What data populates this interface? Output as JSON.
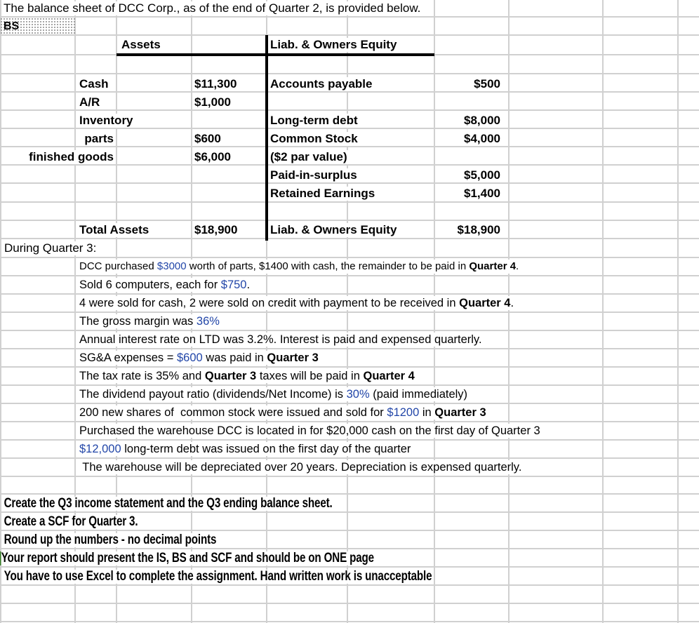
{
  "intro": "The balance sheet of DCC Corp., as of the end of Quarter 2, is provided below.",
  "sheet_tag": "BS",
  "balance_sheet": {
    "assets_header": "Assets",
    "liab_header": "Liab. & Owners Equity",
    "assets": [
      {
        "label": "Cash",
        "value": "$11,300"
      },
      {
        "label": "A/R",
        "value": "$1,000"
      },
      {
        "label": "Inventory",
        "value": ""
      },
      {
        "label": "parts",
        "value": "$600"
      },
      {
        "label": "finished goods",
        "value": "$6,000"
      }
    ],
    "liabilities": [
      {
        "label": "Accounts payable",
        "value": "$500"
      },
      {
        "label": "Long-term debt",
        "value": "$8,000"
      },
      {
        "label": "Common Stock",
        "value": "$4,000"
      },
      {
        "label": "($2 par value)",
        "value": ""
      },
      {
        "label": "Paid-in-surplus",
        "value": "$5,000"
      },
      {
        "label": "Retained Earnings",
        "value": "$1,400"
      }
    ],
    "total_assets_label": "Total Assets",
    "total_assets": "$18,900",
    "total_liab_label": "Liab. & Owners Equity",
    "total_liab": "$18,900"
  },
  "quarter3": {
    "heading": "During Quarter 3:",
    "lines": [
      [
        {
          "t": "DCC purchased "
        },
        {
          "t": "$3000",
          "s": "blue"
        },
        {
          "t": " worth of parts, $1400 with cash, the remainder to be paid in "
        },
        {
          "t": "Quarter 4",
          "s": "b"
        },
        {
          "t": "."
        }
      ],
      [
        {
          "t": "Sold 6 computers, each for "
        },
        {
          "t": "$750",
          "s": "blue"
        },
        {
          "t": "."
        }
      ],
      [
        {
          "t": "4 were sold for cash, 2 were sold on credit with payment to be received in "
        },
        {
          "t": "Quarter 4",
          "s": "b"
        },
        {
          "t": "."
        }
      ],
      [
        {
          "t": "The gross margin was "
        },
        {
          "t": "36%",
          "s": "blue"
        }
      ],
      [
        {
          "t": "Annual interest rate on LTD was 3.2%. Interest is paid and expensed quarterly."
        }
      ],
      [
        {
          "t": "SG&A expenses = "
        },
        {
          "t": "$600",
          "s": "blue"
        },
        {
          "t": " was paid in "
        },
        {
          "t": "Quarter 3",
          "s": "b"
        }
      ],
      [
        {
          "t": "The tax rate is 35% and "
        },
        {
          "t": "Quarter 3",
          "s": "b"
        },
        {
          "t": " taxes will be paid in "
        },
        {
          "t": "Quarter 4",
          "s": "b"
        }
      ],
      [
        {
          "t": "The dividend payout ratio (dividends/Net Income) is "
        },
        {
          "t": "30%",
          "s": "blue"
        },
        {
          "t": " (paid immediately)"
        }
      ],
      [
        {
          "t": "200 new shares of  common stock were issued and sold for "
        },
        {
          "t": "$1200",
          "s": "blue"
        },
        {
          "t": " in "
        },
        {
          "t": "Quarter 3",
          "s": "b"
        }
      ],
      [
        {
          "t": "Purchased the warehouse DCC is located in for $20,000 cash on the first day of Quarter 3"
        }
      ],
      [
        {
          "t": "$12,000",
          "s": "blue"
        },
        {
          "t": " long-term debt was issued on the first day of the quarter"
        }
      ],
      [
        {
          "t": " The warehouse will be depreciated over 20 years. Depreciation is expensed quarterly."
        }
      ]
    ]
  },
  "instructions": [
    "Create the Q3 income statement and the Q3 ending balance sheet.",
    "Create a SCF for Quarter 3.",
    "Round up the numbers - no decimal points",
    "Your report should present the IS, BS and SCF and should be on ONE page",
    "You have to use Excel to complete the assignment. Hand written work is unacceptable"
  ],
  "colors": {
    "gridline": "#d0d0d0",
    "highlight_blue": "#2246a8",
    "selection_green": "#3a7d2a"
  }
}
